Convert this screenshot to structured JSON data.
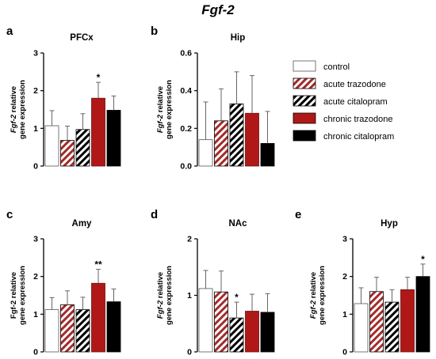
{
  "figure": {
    "title": "Fgf-2"
  },
  "legend": {
    "placement": "right",
    "items": [
      {
        "key": "control",
        "label": "control",
        "color": "#ffffff",
        "pattern": "none"
      },
      {
        "key": "acute_trazodone",
        "label": "acute trazodone",
        "color": "#a52a2a",
        "pattern": "stripes"
      },
      {
        "key": "acute_citalopram",
        "label": "acute citalopram",
        "color": "#000000",
        "pattern": "stripes"
      },
      {
        "key": "chronic_trazodone",
        "label": "chronic trazodone",
        "color": "#b01818",
        "pattern": "solid"
      },
      {
        "key": "chronic_citalopram",
        "label": "chronic citalopram",
        "color": "#000000",
        "pattern": "solid"
      }
    ]
  },
  "chart_data": [
    {
      "type": "bar",
      "letter": "a",
      "title": "PFCx",
      "ylabel_italic": "Fgf-2",
      "ylabel_rest": " relative",
      "ylabel_line2": "gene expression",
      "categories": [
        "control",
        "acute trazodone",
        "acute citalopram",
        "chronic trazodone",
        "chronic citalopram"
      ],
      "values": [
        1.07,
        0.68,
        0.97,
        1.8,
        1.48
      ],
      "errors": [
        0.4,
        0.38,
        0.42,
        0.42,
        0.38
      ],
      "significance": [
        "",
        "",
        "",
        "*",
        ""
      ],
      "ylim": [
        0,
        3
      ],
      "yticks": [
        "0",
        "1",
        "2",
        "3"
      ],
      "tick_values": [
        0,
        1,
        2,
        3
      ]
    },
    {
      "type": "bar",
      "letter": "b",
      "title": "Hip",
      "ylabel_italic": "Fgf-2",
      "ylabel_rest": " relative",
      "ylabel_line2": "gene expression",
      "categories": [
        "control",
        "acute trazodone",
        "acute citalopram",
        "chronic trazodone",
        "chronic citalopram"
      ],
      "values": [
        0.14,
        0.24,
        0.33,
        0.28,
        0.12
      ],
      "errors": [
        0.2,
        0.17,
        0.17,
        0.2,
        0.17
      ],
      "significance": [
        "",
        "",
        "",
        "",
        ""
      ],
      "ylim": [
        0,
        0.6
      ],
      "yticks": [
        "0.0",
        "0.2",
        "0.4",
        "0.6"
      ],
      "tick_values": [
        0,
        0.2,
        0.4,
        0.6
      ]
    },
    {
      "type": "bar",
      "letter": "c",
      "title": "Amy",
      "ylabel_italic": "",
      "ylabel_rest": "Fgf-2 relative",
      "ylabel_line2": "gene expression",
      "categories": [
        "control",
        "acute trazodone",
        "acute citalopram",
        "chronic trazodone",
        "chronic citalopram"
      ],
      "values": [
        1.12,
        1.25,
        1.12,
        1.82,
        1.33
      ],
      "errors": [
        0.32,
        0.37,
        0.33,
        0.37,
        0.34
      ],
      "significance": [
        "",
        "",
        "",
        "**",
        ""
      ],
      "ylim": [
        0,
        3
      ],
      "yticks": [
        "0",
        "1",
        "2",
        "3"
      ],
      "tick_values": [
        0,
        1,
        2,
        3
      ]
    },
    {
      "type": "bar",
      "letter": "d",
      "title": "NAc",
      "ylabel_italic": "Fgf-2",
      "ylabel_rest": " relative",
      "ylabel_line2": "gene expression",
      "categories": [
        "control",
        "acute trazodone",
        "acute citalopram",
        "chronic trazodone",
        "chronic citalopram"
      ],
      "values": [
        1.12,
        1.06,
        0.6,
        0.72,
        0.7
      ],
      "errors": [
        0.32,
        0.37,
        0.28,
        0.3,
        0.33
      ],
      "significance": [
        "",
        "",
        "*",
        "",
        ""
      ],
      "ylim": [
        0,
        2
      ],
      "yticks": [
        "0",
        "1",
        "2"
      ],
      "tick_values": [
        0,
        1,
        2
      ]
    },
    {
      "type": "bar",
      "letter": "e",
      "title": "Hyp",
      "ylabel_italic": "Fgf-2",
      "ylabel_rest": " relative",
      "ylabel_line2": "gene expression",
      "categories": [
        "control",
        "acute trazodone",
        "acute citalopram",
        "chronic trazodone",
        "chronic citalopram"
      ],
      "values": [
        1.28,
        1.6,
        1.32,
        1.65,
        2.0
      ],
      "errors": [
        0.42,
        0.38,
        0.33,
        0.33,
        0.33
      ],
      "significance": [
        "",
        "",
        "",
        "",
        "*"
      ],
      "ylim": [
        0,
        3
      ],
      "yticks": [
        "0",
        "1",
        "2",
        "3"
      ],
      "tick_values": [
        0,
        1,
        2,
        3
      ]
    }
  ]
}
